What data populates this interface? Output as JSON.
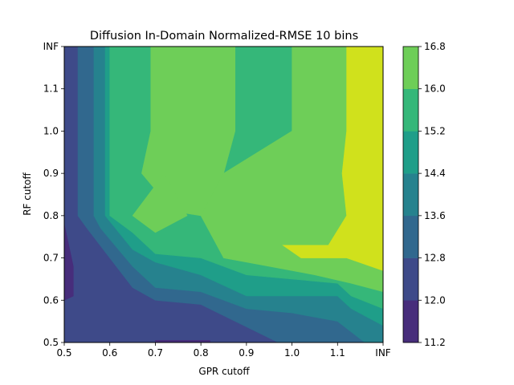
{
  "chart_data": {
    "type": "heatmap",
    "subtype": "filled-contour",
    "title": "Diffusion In-Domain Normalized-RMSE 10 bins",
    "xlabel": "GPR cutoff",
    "ylabel": "RF cutoff",
    "x_ticks": [
      "0.5",
      "0.6",
      "0.7",
      "0.8",
      "0.9",
      "1.0",
      "1.1",
      "INF"
    ],
    "y_ticks": [
      "0.5",
      "0.6",
      "0.7",
      "0.8",
      "0.9",
      "1.0",
      "1.1",
      "INF"
    ],
    "xlim": [
      0.5,
      1.2
    ],
    "ylim": [
      0.5,
      1.2
    ],
    "colorbar": {
      "levels": [
        11.2,
        12.0,
        12.8,
        13.6,
        14.4,
        15.2,
        16.0,
        16.8
      ],
      "tick_labels": [
        "11.2",
        "12.0",
        "12.8",
        "13.6",
        "14.4",
        "15.2",
        "16.0",
        "16.8"
      ],
      "colors": [
        "#472d7b",
        "#3e4a89",
        "#31688e",
        "#26828e",
        "#1f9e89",
        "#35b779",
        "#6ece58",
        "#d0e11c"
      ]
    },
    "regions": [
      {
        "band": 1,
        "polygon": [
          [
            0.5,
            0.5
          ],
          [
            1.2,
            0.5
          ],
          [
            1.2,
            1.2
          ],
          [
            0.5,
            1.2
          ]
        ]
      },
      {
        "band": 2,
        "polygon": [
          [
            0.53,
            1.2
          ],
          [
            1.2,
            1.2
          ],
          [
            1.2,
            0.5
          ],
          [
            0.97,
            0.5
          ],
          [
            0.8,
            0.59
          ],
          [
            0.7,
            0.6
          ],
          [
            0.65,
            0.63
          ],
          [
            0.6,
            0.7
          ],
          [
            0.55,
            0.77
          ],
          [
            0.53,
            0.8
          ]
        ]
      },
      {
        "band": 3,
        "polygon": [
          [
            0.565,
            1.2
          ],
          [
            1.2,
            1.2
          ],
          [
            1.2,
            0.5
          ],
          [
            1.16,
            0.5
          ],
          [
            1.1,
            0.55
          ],
          [
            1.0,
            0.57
          ],
          [
            0.9,
            0.58
          ],
          [
            0.8,
            0.62
          ],
          [
            0.7,
            0.63
          ],
          [
            0.65,
            0.68
          ],
          [
            0.58,
            0.77
          ],
          [
            0.565,
            0.8
          ]
        ]
      },
      {
        "band": 4,
        "polygon": [
          [
            0.59,
            1.2
          ],
          [
            1.2,
            1.2
          ],
          [
            1.2,
            0.54
          ],
          [
            1.13,
            0.58
          ],
          [
            1.1,
            0.61
          ],
          [
            1.0,
            0.61
          ],
          [
            0.9,
            0.61
          ],
          [
            0.8,
            0.66
          ],
          [
            0.7,
            0.69
          ],
          [
            0.65,
            0.72
          ],
          [
            0.59,
            0.8
          ]
        ]
      },
      {
        "band": 5,
        "polygon": [
          [
            0.6,
            1.2
          ],
          [
            1.2,
            1.2
          ],
          [
            1.2,
            0.58
          ],
          [
            1.13,
            0.61
          ],
          [
            1.1,
            0.64
          ],
          [
            1.0,
            0.65
          ],
          [
            0.9,
            0.66
          ],
          [
            0.8,
            0.7
          ],
          [
            0.7,
            0.71
          ],
          [
            0.65,
            0.76
          ],
          [
            0.6,
            0.8
          ]
        ]
      },
      {
        "band": 6,
        "polygon": [
          [
            0.69,
            1.2
          ],
          [
            0.875,
            1.2
          ],
          [
            0.875,
            1.0
          ],
          [
            0.85,
            0.9
          ],
          [
            0.8,
            0.8
          ],
          [
            0.74,
            0.81
          ],
          [
            0.67,
            0.9
          ],
          [
            0.69,
            1.0
          ]
        ]
      },
      {
        "band": 6,
        "polygon": [
          [
            1.0,
            1.2
          ],
          [
            1.2,
            1.2
          ],
          [
            1.2,
            0.62
          ],
          [
            1.13,
            0.64
          ],
          [
            1.05,
            0.66
          ],
          [
            0.95,
            0.68
          ],
          [
            0.85,
            0.7
          ],
          [
            0.8,
            0.8
          ],
          [
            0.85,
            0.9
          ],
          [
            1.0,
            1.0
          ]
        ]
      },
      {
        "band": 6,
        "polygon": [
          [
            0.65,
            0.8
          ],
          [
            0.72,
            0.9
          ],
          [
            0.77,
            0.8
          ],
          [
            0.7,
            0.76
          ]
        ]
      },
      {
        "band": 7,
        "polygon": [
          [
            1.12,
            1.2
          ],
          [
            1.2,
            1.2
          ],
          [
            1.2,
            0.67
          ],
          [
            1.12,
            0.7
          ],
          [
            1.02,
            0.7
          ],
          [
            0.98,
            0.73
          ],
          [
            1.08,
            0.73
          ],
          [
            1.12,
            0.8
          ],
          [
            1.11,
            0.9
          ],
          [
            1.12,
            1.0
          ]
        ]
      },
      {
        "band": 0,
        "polygon": [
          [
            0.5,
            0.6
          ],
          [
            0.52,
            0.61
          ],
          [
            0.52,
            0.68
          ],
          [
            0.5,
            0.78
          ]
        ]
      },
      {
        "band": 0,
        "polygon": [
          [
            0.7,
            0.5
          ],
          [
            0.82,
            0.5
          ],
          [
            0.82,
            0.505
          ],
          [
            0.7,
            0.505
          ]
        ]
      }
    ]
  }
}
